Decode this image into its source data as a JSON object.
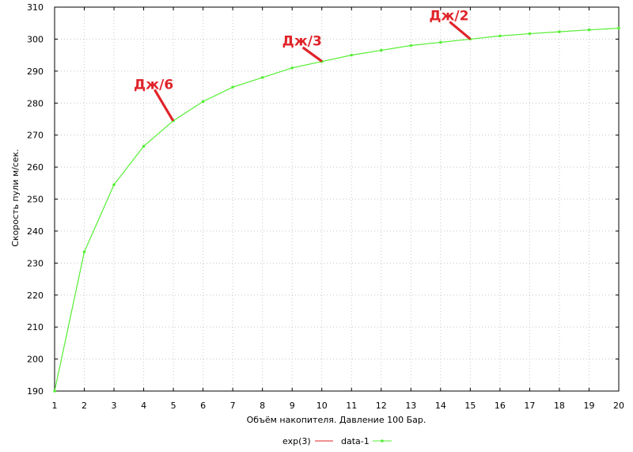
{
  "chart_data": {
    "type": "line",
    "title": "",
    "xlabel": "Объём накопителя. Давление 100 Бар.",
    "ylabel": "Скорость пули м/сек.",
    "xlim": [
      1,
      20
    ],
    "ylim": [
      190,
      310
    ],
    "xticks": [
      1,
      2,
      3,
      4,
      5,
      6,
      7,
      8,
      9,
      10,
      11,
      12,
      13,
      14,
      15,
      16,
      17,
      18,
      19,
      20
    ],
    "yticks": [
      190,
      200,
      210,
      220,
      230,
      240,
      250,
      260,
      270,
      280,
      290,
      300,
      310
    ],
    "grid": true,
    "legend_position": "bottom-center",
    "series": [
      {
        "name": "exp(3)",
        "color": "#e0242a",
        "x": [],
        "y": []
      },
      {
        "name": "data-1",
        "color": "#55ee33",
        "x": [
          1,
          2,
          3,
          4,
          5,
          6,
          7,
          8,
          9,
          10,
          11,
          12,
          13,
          14,
          15,
          16,
          17,
          18,
          19,
          20
        ],
        "y": [
          190,
          233.5,
          254.5,
          266.5,
          274.5,
          280.5,
          285,
          288,
          291,
          293,
          295,
          296.5,
          298,
          299,
          300,
          301,
          301.7,
          302.3,
          302.9,
          303.4
        ]
      }
    ],
    "annotations": [
      {
        "text": "Дж/6",
        "x": 5,
        "y": 274.5,
        "color": "#e0242a"
      },
      {
        "text": "Дж/3",
        "x": 10,
        "y": 293,
        "color": "#e0242a"
      },
      {
        "text": "Дж/2",
        "x": 15,
        "y": 300,
        "color": "#e0242a"
      }
    ]
  }
}
